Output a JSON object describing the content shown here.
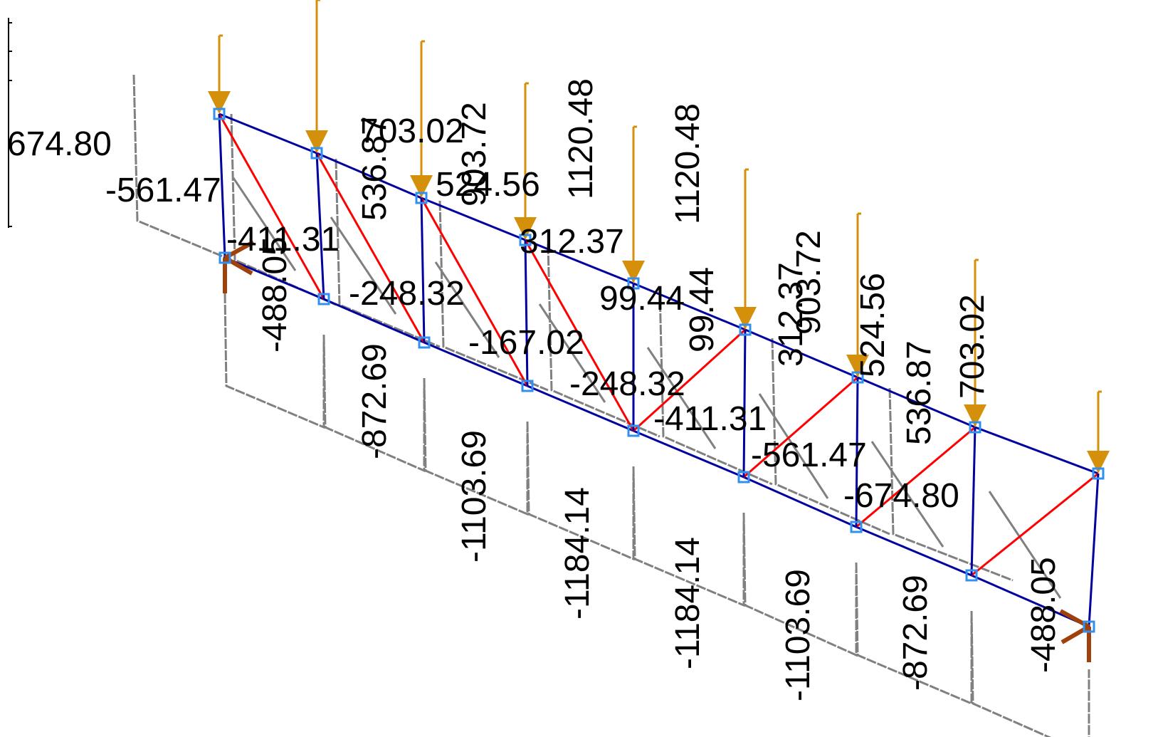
{
  "labels": [
    "674.80",
    "-561.47",
    "-411.31",
    "703.02",
    "524.56",
    "312.37",
    "-248.32",
    "99.44",
    "-167.02",
    "-248.32",
    "-411.31",
    "-561.47",
    "-674.80",
    "-488.05",
    "536.87",
    "903.72",
    "1120.48",
    "1120.48",
    "-872.69",
    "-1103.69",
    "-1184.14",
    "99.44",
    "312.37",
    "903.72",
    "-1184.14",
    "524.56",
    "536.87",
    "703.02",
    "-1103.69",
    "-872.69",
    "-488.05"
  ]
}
